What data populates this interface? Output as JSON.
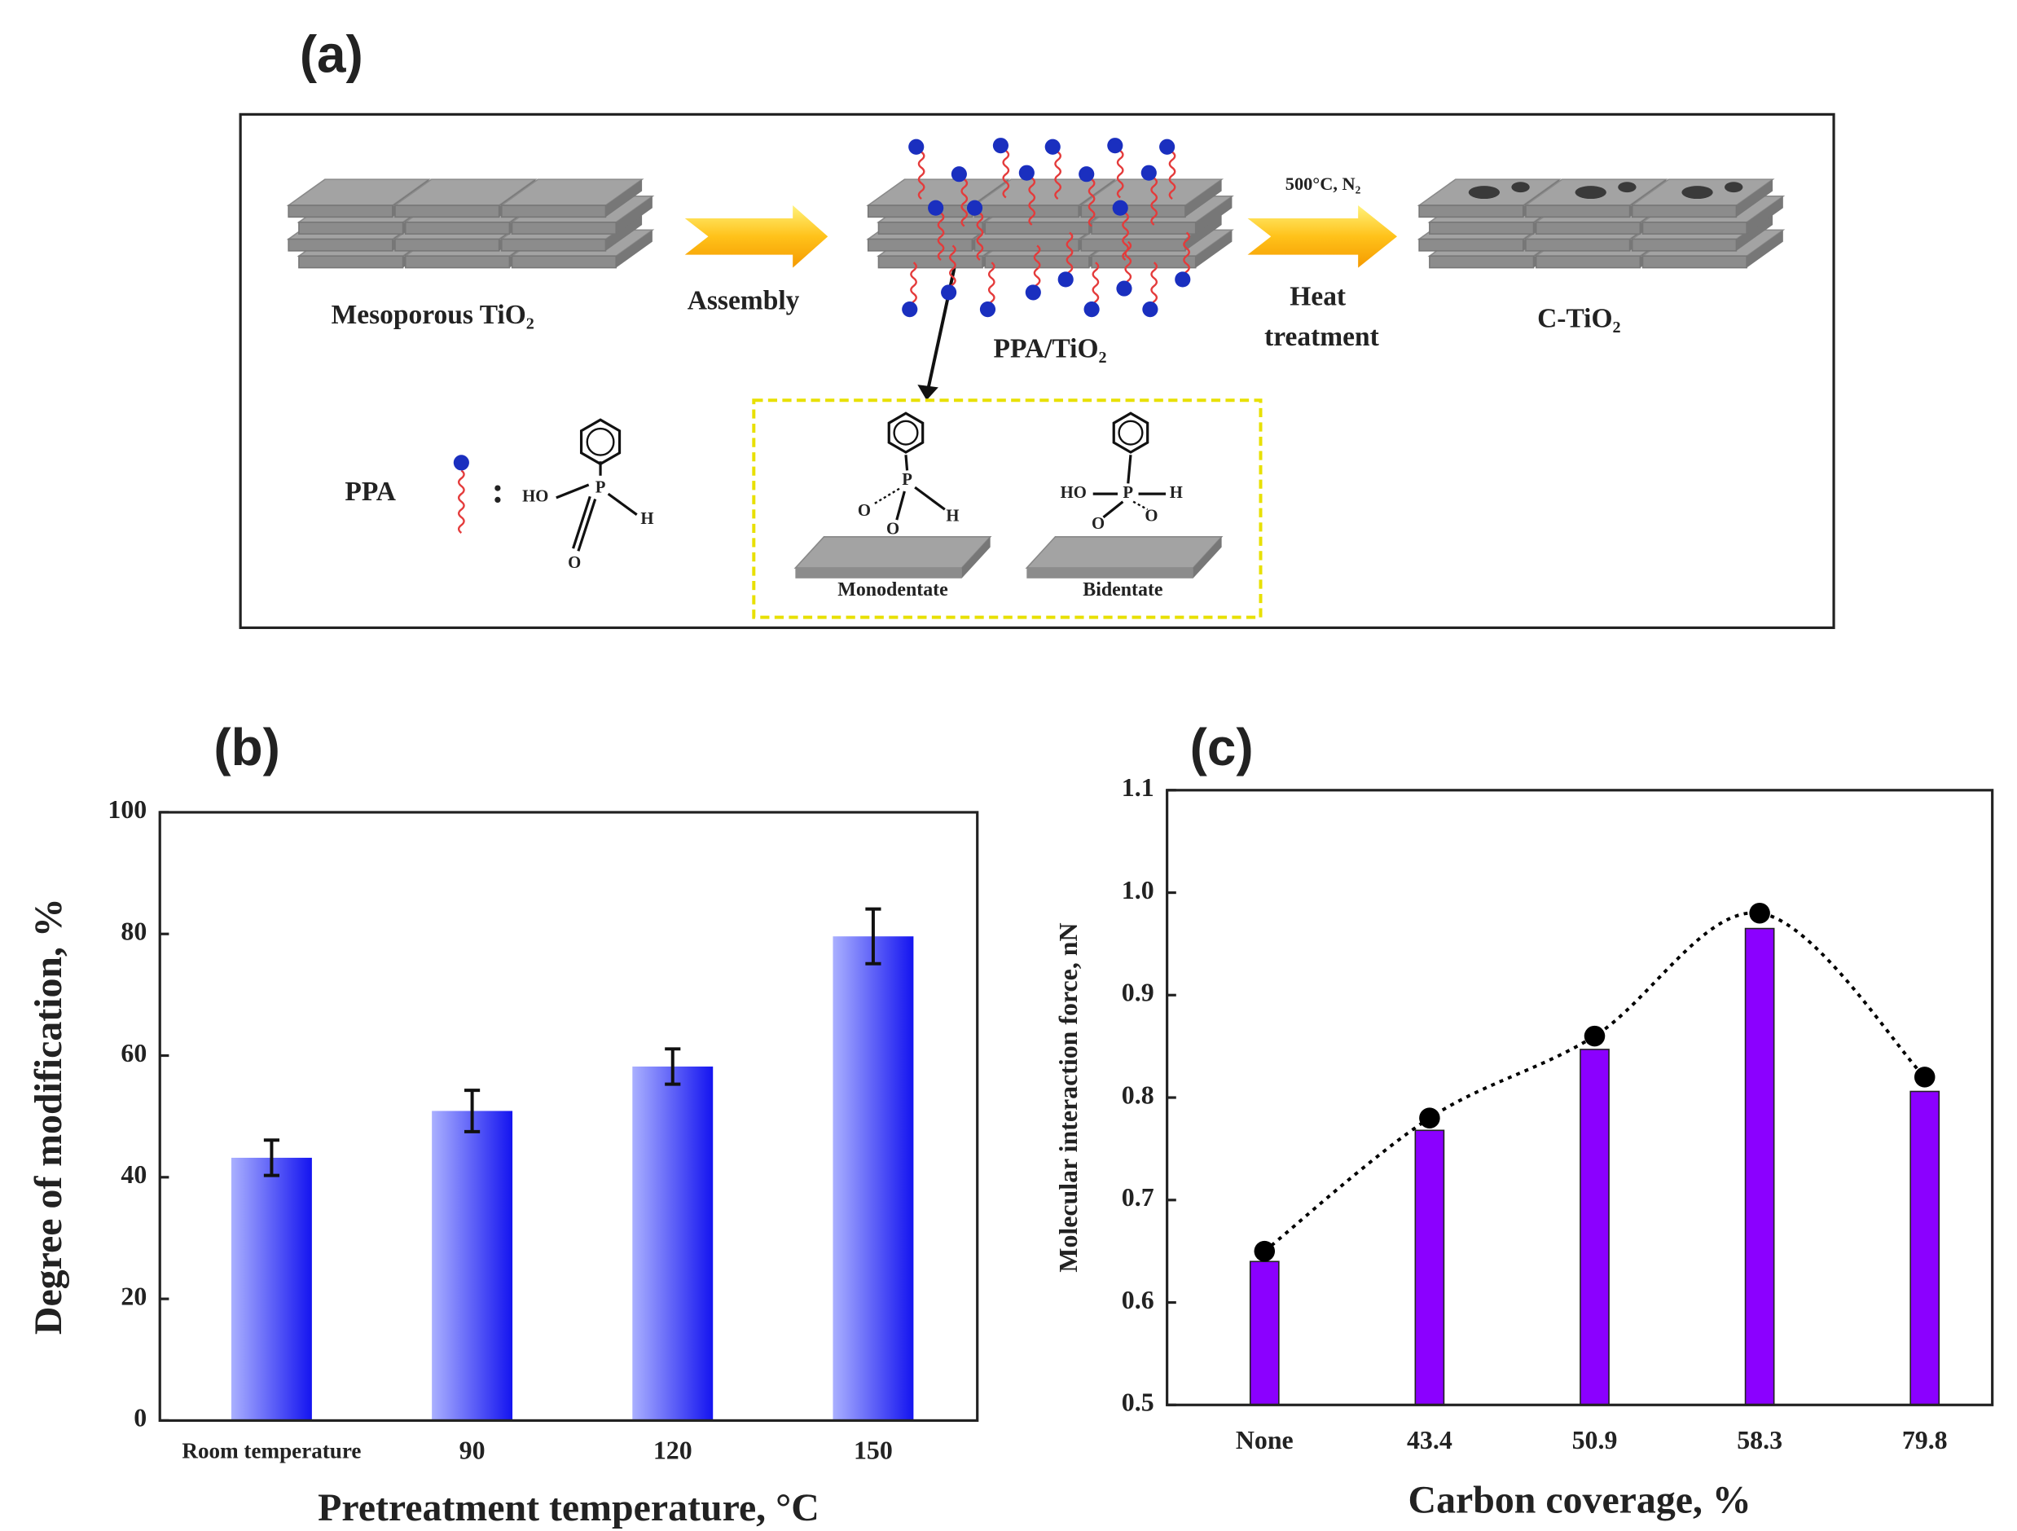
{
  "diagram": {
    "label": "(a)",
    "mesoporous": "Mesoporous  TiO₂",
    "assembly": "Assembly",
    "ppa_tio2": "PPA/TiO₂",
    "condition": "500°C, N₂",
    "heat": [
      "Heat",
      "treatment"
    ],
    "c_tio2": "C-TiO₂",
    "ppa": "PPA",
    "colon": ":",
    "formula": {
      "ho": "HO",
      "p": "P",
      "h": "H",
      "o": "O"
    },
    "monodentate": {
      "label": "Monodentate",
      "p": "P",
      "h": "H",
      "o1": "O",
      "o2": "O"
    },
    "bidentate": {
      "label": "Bidentate",
      "ho": "HO",
      "p": "P",
      "h": "H",
      "o1": "O",
      "o2": "O"
    }
  },
  "chart_data": [
    {
      "type": "bar",
      "title": "(b)",
      "xlabel": "Pretreatment temperature, °C",
      "ylabel": "Degree of modification, %",
      "categories": [
        "Room temperature",
        "90",
        "120",
        "150"
      ],
      "values": [
        43.2,
        50.9,
        58.2,
        79.6
      ],
      "errors": [
        2.9,
        3.4,
        2.9,
        4.5
      ],
      "color": "#1414f0",
      "ylim": [
        0,
        100
      ],
      "yticks": [
        0,
        20,
        40,
        60,
        80,
        100
      ]
    },
    {
      "type": "bar",
      "title": "(c)",
      "xlabel": "Carbon coverage, %",
      "ylabel": "Molecular  interaction force, nN",
      "categories": [
        "None",
        "43.4",
        "50.9",
        "58.3",
        "79.8"
      ],
      "series": [
        {
          "type": "bar",
          "color": "#8b00ff",
          "values": [
            0.64,
            0.768,
            0.847,
            0.965,
            0.806
          ]
        },
        {
          "type": "line",
          "color": "#000000",
          "values": [
            0.65,
            0.78,
            0.86,
            0.98,
            0.82
          ]
        }
      ],
      "ylim": [
        0.5,
        1.1
      ],
      "yticks": [
        0.5,
        0.6,
        0.7,
        0.8,
        0.9,
        {
          "value": 1,
          "label": "1.0"
        },
        1.1
      ]
    }
  ]
}
